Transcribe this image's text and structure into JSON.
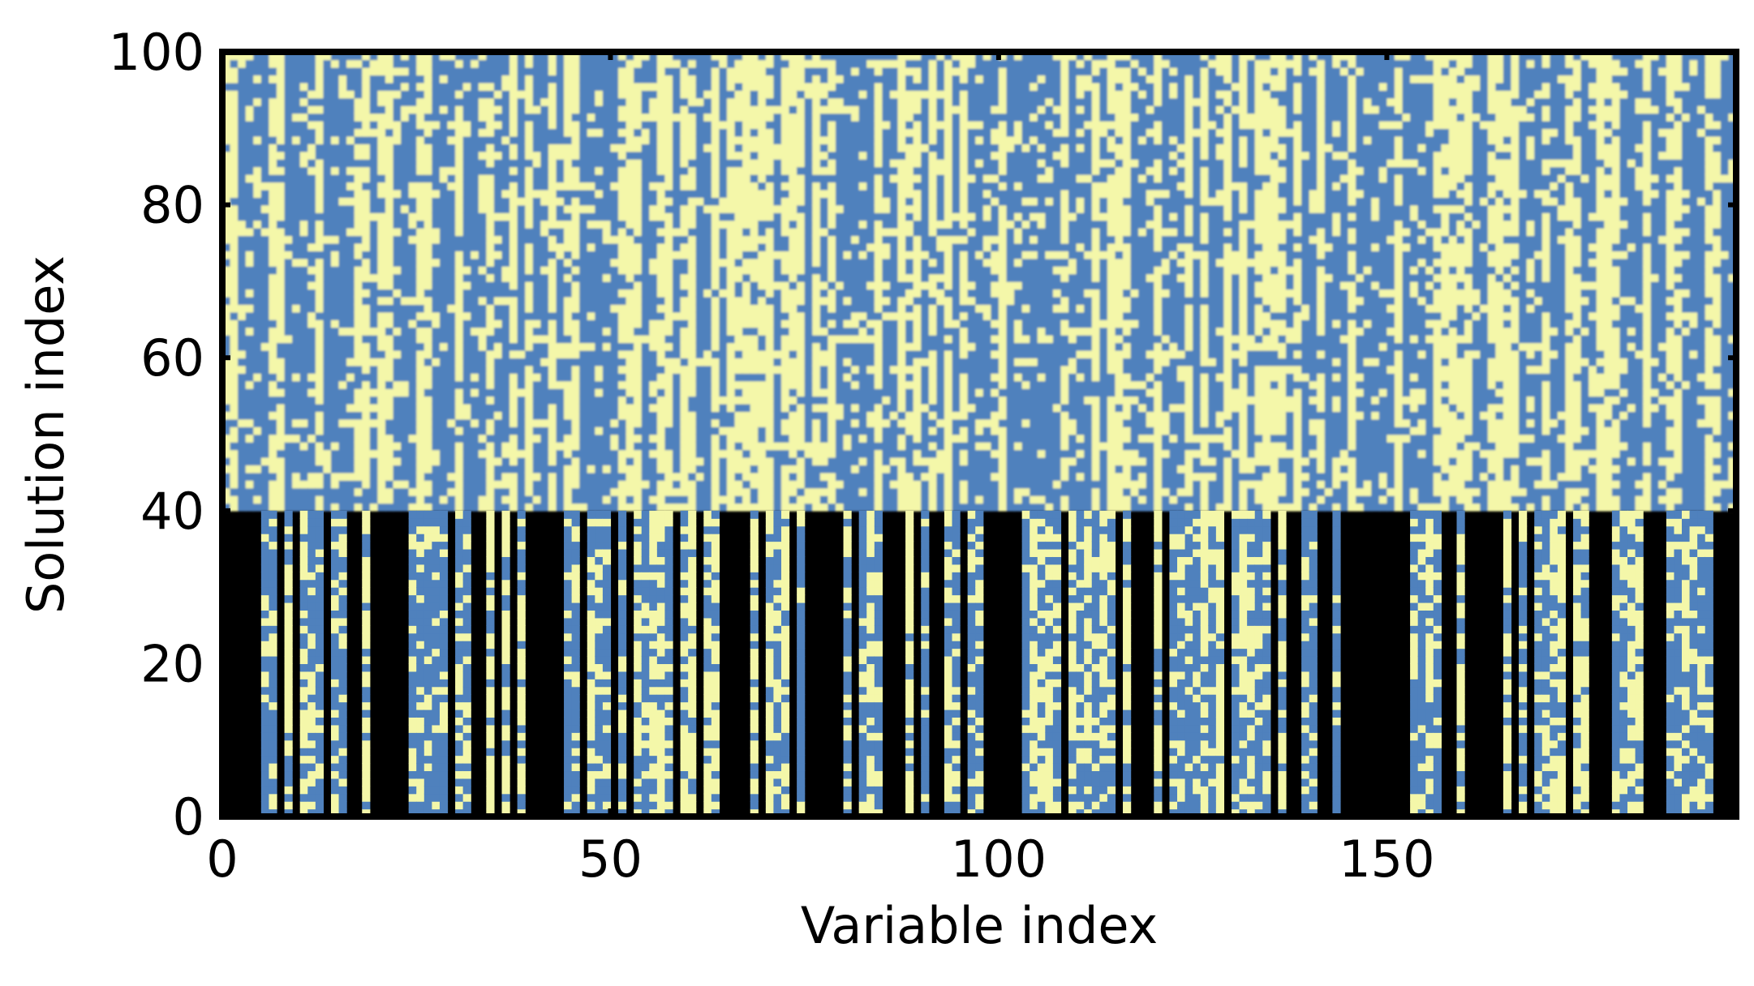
{
  "chart_data": {
    "type": "heatmap",
    "title": "",
    "xlabel": "Variable index",
    "ylabel": "Solution index",
    "xlim": [
      0,
      195
    ],
    "ylim": [
      0,
      100
    ],
    "x_ticks": [
      0,
      50,
      100,
      150
    ],
    "y_ticks": [
      0,
      20,
      40,
      60,
      80,
      100
    ],
    "grid": false,
    "legend": "none",
    "colors": {
      "blue": "#4f81bd",
      "yellow": "#f4f7a9",
      "black": "#000000"
    },
    "sections": [
      {
        "label": "Solution index 40–100",
        "rows": [
          40,
          100
        ],
        "description_type": "dense",
        "cell_values": [
          "blue",
          "yellow"
        ]
      },
      {
        "label": "Solution index 0–40",
        "rows": [
          0,
          40
        ],
        "description_type": "sparse",
        "cell_values": [
          "black",
          "blue",
          "yellow"
        ]
      }
    ]
  }
}
